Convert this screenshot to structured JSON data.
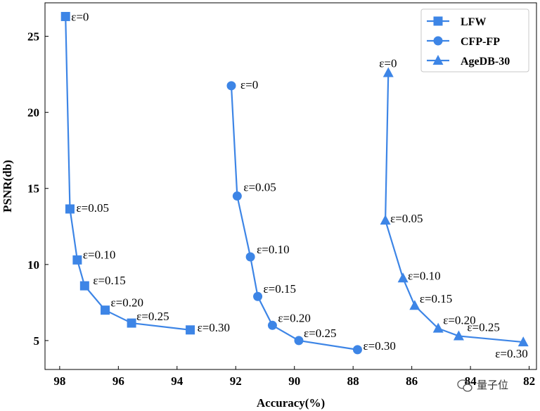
{
  "chart_data": {
    "type": "line",
    "xlabel": "Accuracy(%)",
    "ylabel": "PSNR(db)",
    "xlim": [
      98.5,
      81.75
    ],
    "ylim": [
      3.1,
      27.2
    ],
    "x_reversed": true,
    "xticks": [
      98,
      96,
      94,
      92,
      90,
      88,
      86,
      84,
      82
    ],
    "yticks": [
      5,
      10,
      15,
      20,
      25
    ],
    "xtick_labels": [
      "98",
      "96",
      "94",
      "92",
      "90",
      "88",
      "86",
      "84",
      "82"
    ],
    "ytick_labels": [
      "5",
      "10",
      "15",
      "20",
      "25"
    ],
    "legend_position": "top-right",
    "grid": false,
    "color": "#3d85e6",
    "series": [
      {
        "name": "LFW",
        "marker": "square",
        "x": [
          97.8,
          97.65,
          97.4,
          97.15,
          96.45,
          95.55,
          93.55
        ],
        "y": [
          26.3,
          13.65,
          10.3,
          8.6,
          7.0,
          6.15,
          5.7
        ],
        "labels": [
          "ε=0",
          "ε=0.05",
          "ε=0.10",
          "ε=0.15",
          "ε=0.20",
          "ε=0.25",
          "ε=0.30"
        ]
      },
      {
        "name": "CFP-FP",
        "marker": "circle",
        "x": [
          92.15,
          91.95,
          91.5,
          91.25,
          90.75,
          89.85,
          87.85
        ],
        "y": [
          21.75,
          14.5,
          10.5,
          7.9,
          6.0,
          5.0,
          4.4
        ],
        "labels": [
          "ε=0",
          "ε=0.05",
          "ε=0.10",
          "ε=0.15",
          "ε=0.20",
          "ε=0.25",
          "ε=0.30"
        ]
      },
      {
        "name": "AgeDB-30",
        "marker": "triangle",
        "x": [
          86.8,
          86.9,
          86.3,
          85.9,
          85.1,
          84.4,
          82.2
        ],
        "y": [
          22.6,
          12.9,
          9.1,
          7.3,
          5.8,
          5.3,
          4.9
        ],
        "labels": [
          "ε=0",
          "ε=0.05",
          "ε=0.10",
          "ε=0.15",
          "ε=0.20",
          "ε=0.25",
          "ε=0.30"
        ]
      }
    ]
  },
  "watermark": {
    "text": "量子位",
    "icon": "wechat-icon"
  }
}
